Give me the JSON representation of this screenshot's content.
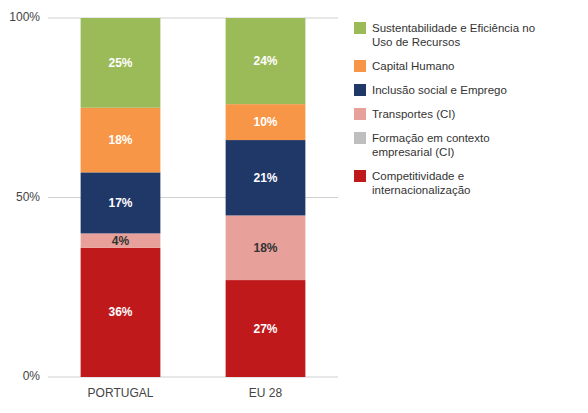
{
  "chart_data": {
    "type": "bar",
    "stacked": true,
    "categories": [
      "PORTUGAL",
      "EU 28"
    ],
    "series": [
      {
        "name": "Competitividade e\ninternacionalização",
        "color": "#c0191c",
        "values": [
          36,
          27
        ],
        "value_labels": [
          "36%",
          "27%"
        ]
      },
      {
        "name": "Formação em contexto\nempresarial (CI)",
        "color": "#bfbfbf",
        "values": [
          null,
          null
        ]
      },
      {
        "name": "Transportes (CI)",
        "color": "#e8a09a",
        "values": [
          4,
          18
        ],
        "value_labels": [
          "4%",
          "18%"
        ]
      },
      {
        "name": "Inclusão social e Emprego",
        "color": "#1f3868",
        "values": [
          17,
          21
        ],
        "value_labels": [
          "17%",
          "21%"
        ]
      },
      {
        "name": "Capital Humano",
        "color": "#f79646",
        "values": [
          18,
          10
        ],
        "value_labels": [
          "18%",
          "10%"
        ]
      },
      {
        "name": "Sustentabilidade e Eficiência no\nUso de Recursos",
        "color": "#9bbb59",
        "values": [
          25,
          24
        ],
        "value_labels": [
          "25%",
          "24%"
        ]
      }
    ],
    "ylim": [
      0,
      100
    ],
    "yticks": [
      {
        "value": 0,
        "label": "0%"
      },
      {
        "value": 50,
        "label": "50%"
      },
      {
        "value": 100,
        "label": "100%"
      }
    ],
    "grid": true,
    "data_labels": true,
    "legend": "right"
  }
}
